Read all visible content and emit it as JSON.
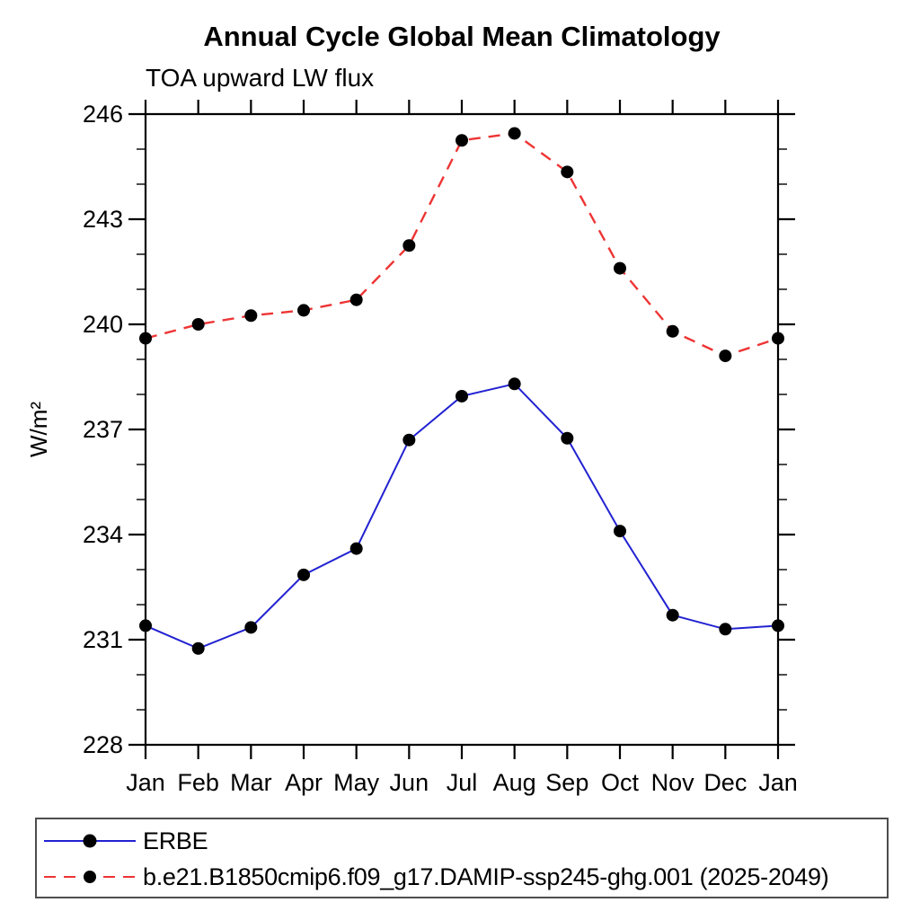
{
  "window": {
    "background": "#ffffff"
  },
  "chart_data": {
    "type": "line",
    "title": "Annual Cycle Global Mean Climatology",
    "subtitle": "TOA upward LW flux",
    "ylabel": "W/m²",
    "x_categories": [
      "Jan",
      "Feb",
      "Mar",
      "Apr",
      "May",
      "Jun",
      "Jul",
      "Aug",
      "Sep",
      "Oct",
      "Nov",
      "Dec",
      "Jan"
    ],
    "y_axis": {
      "min": 228,
      "max": 246,
      "major_ticks": [
        228,
        231,
        234,
        237,
        240,
        243,
        246
      ],
      "minor_tick_step": 1
    },
    "grid": false,
    "axis_color": "#000000",
    "legend": {
      "position": "bottom-left-box",
      "border_color": "#4d4d4d"
    },
    "series": [
      {
        "name": "ERBE",
        "color": "#2222d2",
        "line_style": "solid",
        "marker": "filled-circle",
        "marker_color": "#000000",
        "values": [
          231.4,
          230.75,
          231.35,
          232.85,
          233.6,
          236.7,
          237.95,
          238.3,
          236.75,
          234.1,
          231.7,
          231.3,
          231.4
        ]
      },
      {
        "name": "b.e21.B1850cmip6.f09_g17.DAMIP-ssp245-ghg.001 (2025-2049)",
        "color": "#ee3434",
        "line_style": "dashed",
        "marker": "filled-circle",
        "marker_color": "#000000",
        "values": [
          239.6,
          240.0,
          240.25,
          240.4,
          240.7,
          242.25,
          245.25,
          245.45,
          244.35,
          241.6,
          239.8,
          239.1,
          239.6
        ]
      }
    ]
  }
}
